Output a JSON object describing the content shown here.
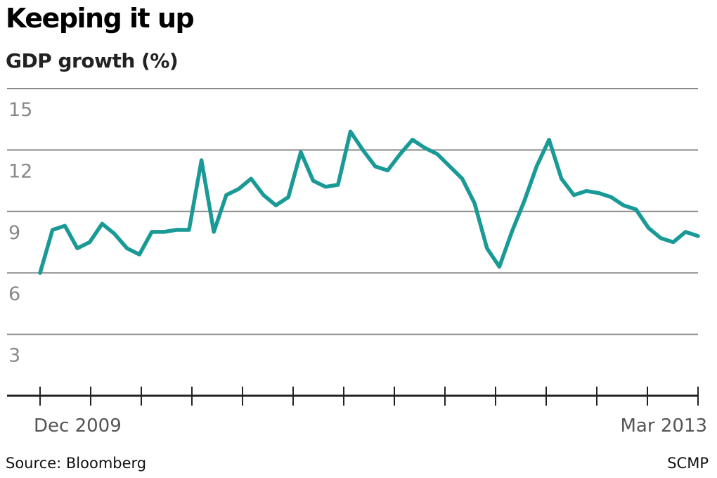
{
  "title": "Keeping it up",
  "subtitle": "GDP growth (%)",
  "source": "Source: Bloomberg",
  "credit": "SCMP",
  "colors": {
    "line": "#1a9a96",
    "grid": "#8a8a8a",
    "axis": "#222222"
  },
  "chart_data": {
    "type": "line",
    "title": "Keeping it up",
    "subtitle": "GDP growth (%)",
    "xlabel": "",
    "ylabel": "",
    "ylim": [
      0,
      15
    ],
    "yticks": [
      3,
      6,
      9,
      12,
      15
    ],
    "grid": true,
    "x_tick_labels": [
      "Dec 2009",
      "Mar 2013"
    ],
    "x_tick_count": 14,
    "series": [
      {
        "values": [
          6.0,
          8.1,
          8.3,
          7.2,
          7.5,
          8.4,
          7.9,
          7.2,
          6.9,
          8.0,
          8.0,
          8.1,
          8.1,
          11.5,
          8.0,
          9.8,
          10.1,
          10.6,
          9.8,
          9.3,
          9.7,
          11.9,
          10.5,
          10.2,
          10.3,
          12.9,
          12.0,
          11.2,
          11.0,
          11.8,
          12.5,
          12.1,
          11.8,
          11.2,
          10.6,
          9.4,
          7.2,
          6.3,
          8.0,
          9.5,
          11.2,
          12.5,
          10.6,
          9.8,
          10.0,
          9.9,
          9.7,
          9.3,
          9.1,
          8.2,
          7.7,
          7.5,
          8.0,
          7.8
        ]
      }
    ]
  }
}
